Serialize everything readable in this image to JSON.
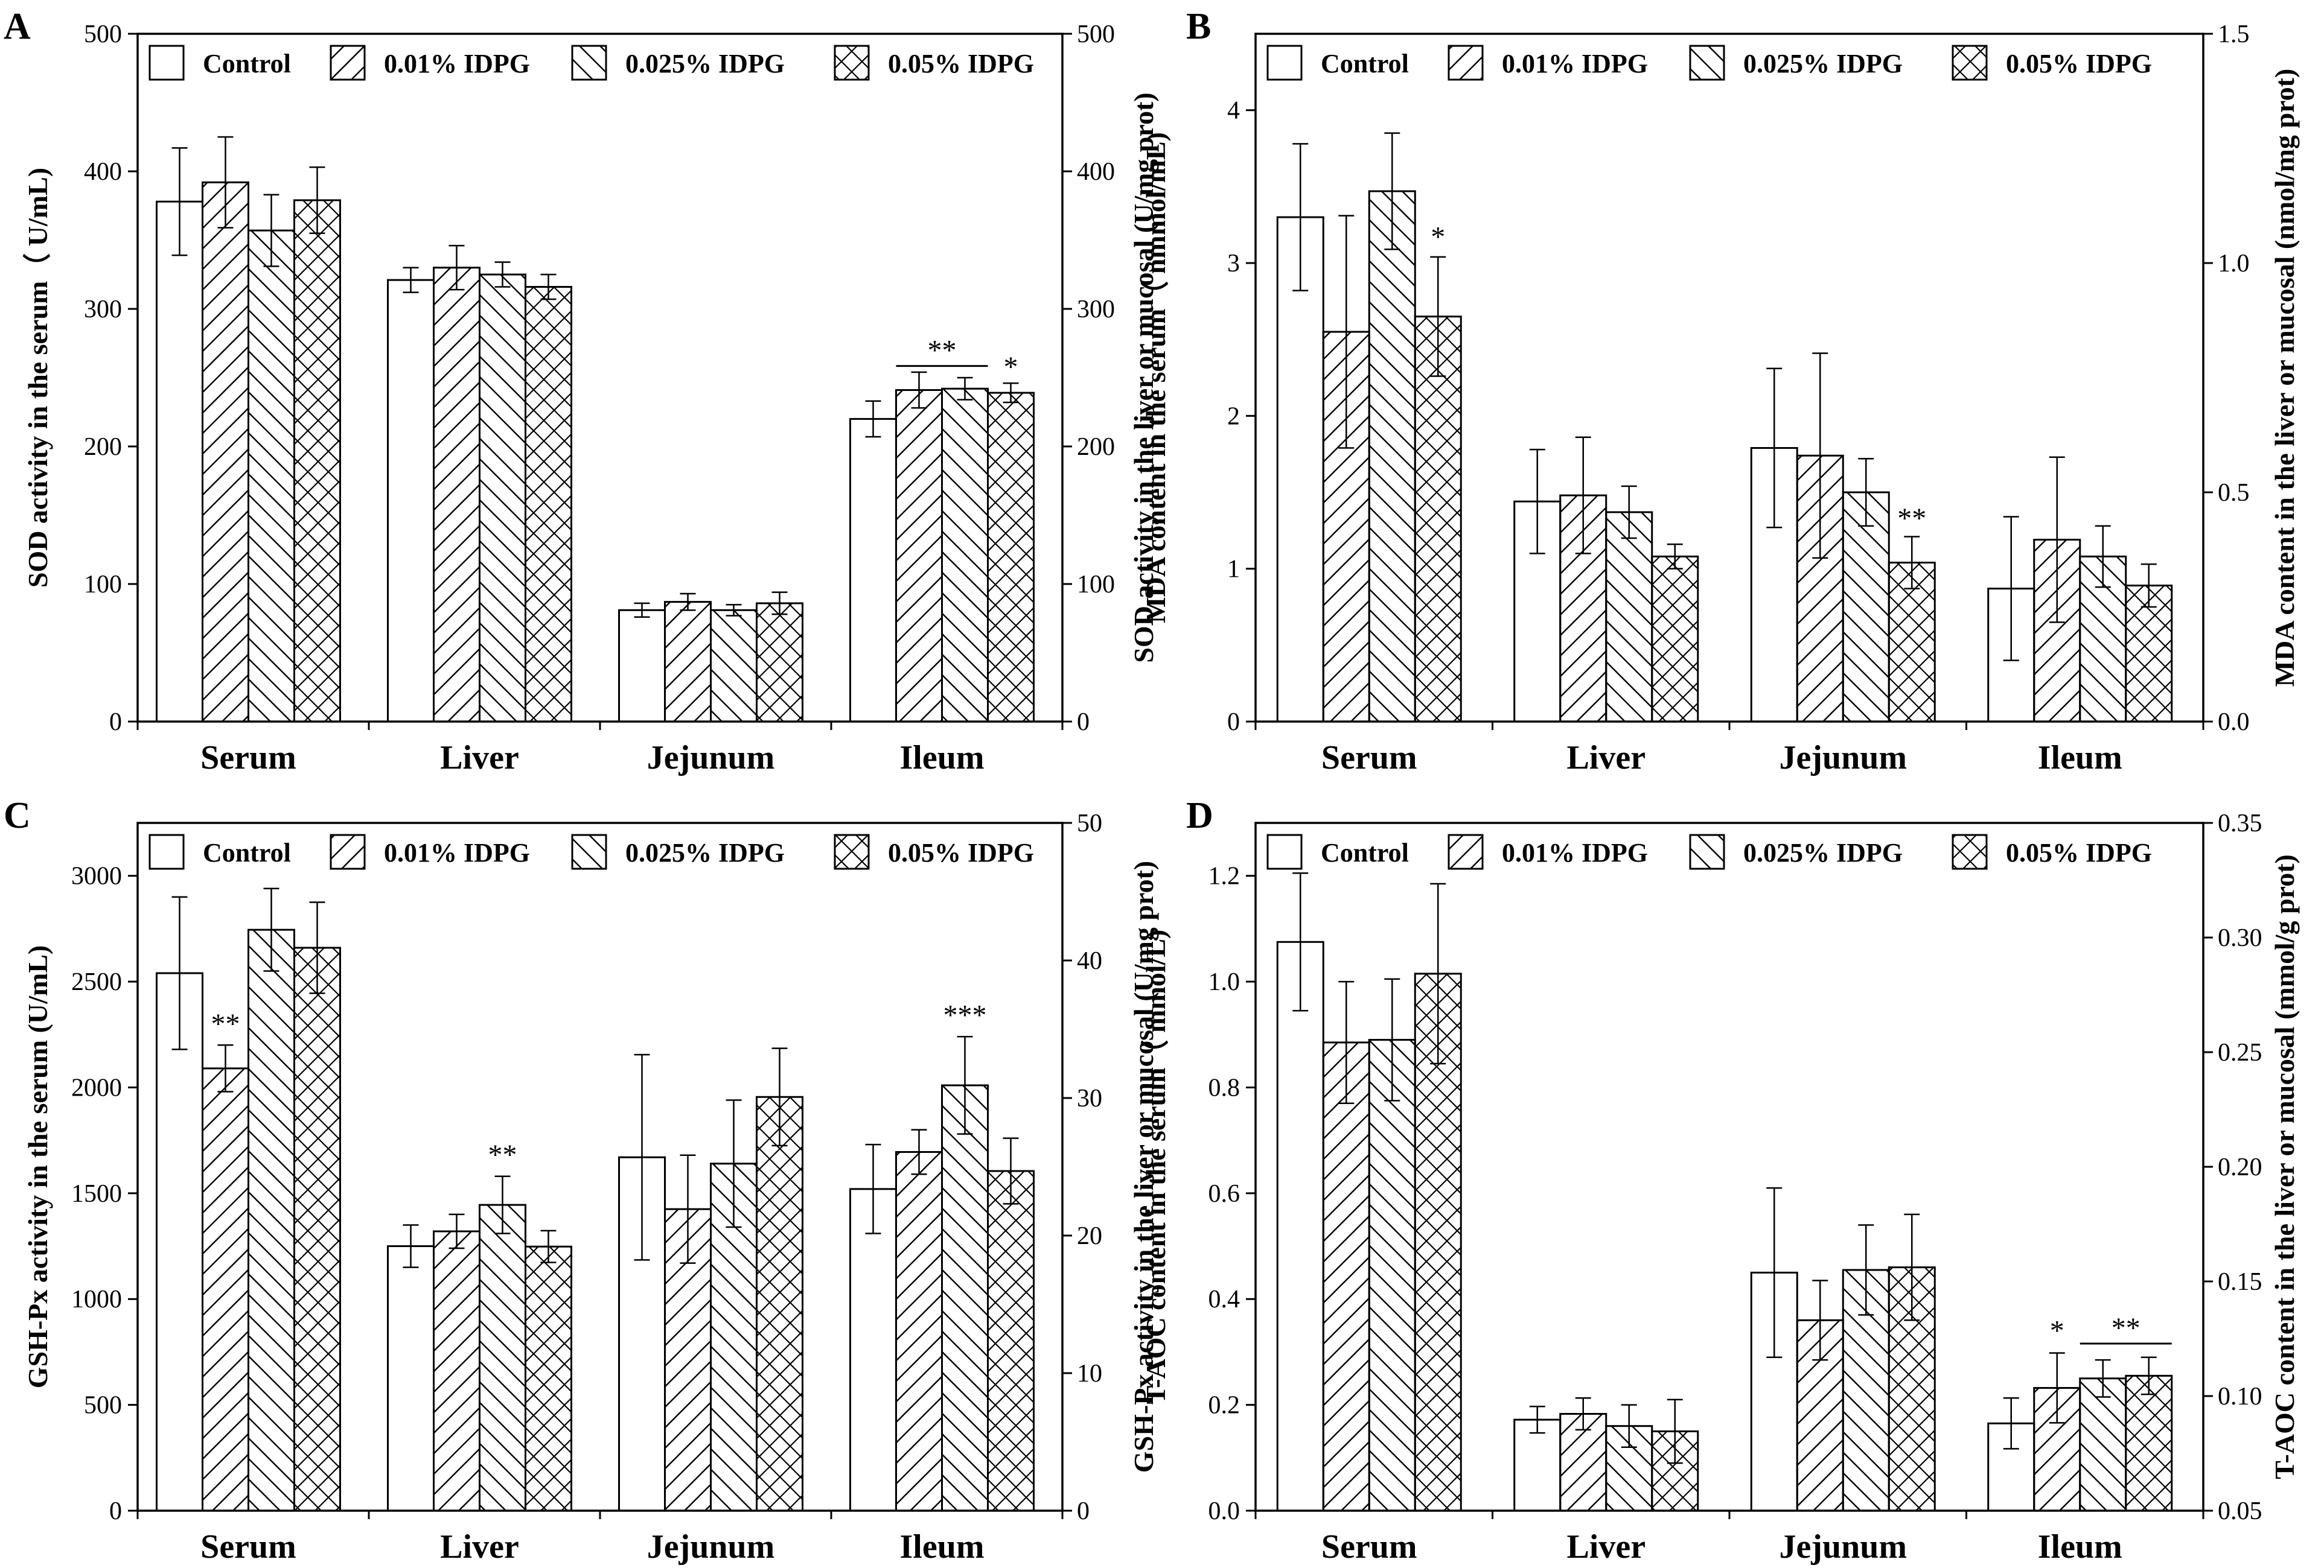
{
  "colors": {
    "ink": "#000000",
    "background": "#ffffff"
  },
  "legend": {
    "items": [
      {
        "label": "Control",
        "pattern": "none"
      },
      {
        "label": "0.01% IDPG",
        "pattern": "fwd"
      },
      {
        "label": "0.025% IDPG",
        "pattern": "back"
      },
      {
        "label": "0.05% IDPG",
        "pattern": "cross"
      }
    ]
  },
  "chart_data": [
    {
      "panel": "A",
      "type": "bar",
      "categories": [
        "Serum",
        "Liver",
        "Jejunum",
        "Ileum"
      ],
      "series_names": [
        "Control",
        "0.01% IDPG",
        "0.025% IDPG",
        "0.05% IDPG"
      ],
      "values": [
        [
          378,
          392,
          357,
          379
        ],
        [
          321,
          330,
          325,
          316
        ],
        [
          81,
          87,
          81,
          86
        ],
        [
          220,
          241,
          242,
          239
        ]
      ],
      "errors": [
        [
          39,
          33,
          26,
          24
        ],
        [
          9,
          16,
          9,
          9
        ],
        [
          5,
          6,
          4,
          8
        ],
        [
          13,
          13,
          8,
          7
        ]
      ],
      "ylabel_left": "SOD activity in the serum（ U/mL)",
      "ylabel_right": "SOD activity in the liver or mucosal (U/mg prot)",
      "ylim_left": [
        0,
        500
      ],
      "ylim_right": [
        0,
        500
      ],
      "yticks_left": [
        "0",
        "100",
        "200",
        "300",
        "400",
        "500"
      ],
      "yticks_right": [
        "0",
        "100",
        "200",
        "300",
        "400",
        "500"
      ],
      "annotations": [
        {
          "text": "**",
          "category": 3,
          "bar": 1,
          "value": 262,
          "bracket_to": 2
        },
        {
          "text": "*",
          "category": 3,
          "bar": 3,
          "value": 250
        }
      ]
    },
    {
      "panel": "B",
      "type": "bar",
      "categories": [
        "Serum",
        "Liver",
        "Jejunum",
        "Ileum"
      ],
      "series_names": [
        "Control",
        "0.01% IDPG",
        "0.025% IDPG",
        "0.05% IDPG"
      ],
      "values": [
        [
          3.3,
          2.55,
          3.47,
          2.65
        ],
        [
          1.44,
          1.48,
          1.37,
          1.08
        ],
        [
          1.79,
          1.74,
          1.5,
          1.04
        ],
        [
          0.87,
          1.19,
          1.08,
          0.89
        ]
      ],
      "errors": [
        [
          0.48,
          0.76,
          0.38,
          0.39
        ],
        [
          0.34,
          0.38,
          0.17,
          0.08
        ],
        [
          0.52,
          0.67,
          0.22,
          0.17
        ],
        [
          0.47,
          0.54,
          0.2,
          0.14
        ]
      ],
      "ylabel_left": "MDA content in the serum（ nmmol/mL)",
      "ylabel_right": "MDA content in the liver or mucosal (nmol/mg prot)",
      "ylim_left": [
        0,
        4.5
      ],
      "ylim_right": [
        0,
        1.5
      ],
      "yticks_left": [
        "0",
        "1",
        "2",
        "3",
        "4"
      ],
      "yticks_right": [
        "0.0",
        "0.5",
        "1.0",
        "1.5"
      ],
      "annotations": [
        {
          "text": "*",
          "category": 0,
          "bar": 3,
          "value": 3.1
        },
        {
          "text": "**",
          "category": 2,
          "bar": 3,
          "value": 1.26
        }
      ]
    },
    {
      "panel": "C",
      "type": "bar",
      "categories": [
        "Serum",
        "Liver",
        "Jejunum",
        "Ileum"
      ],
      "series_names": [
        "Control",
        "0.01% IDPG",
        "0.025% IDPG",
        "0.05% IDPG"
      ],
      "values": [
        [
          2540,
          2090,
          2745,
          2660
        ],
        [
          1250,
          1320,
          1445,
          1248
        ],
        [
          1670,
          1425,
          1640,
          1955
        ],
        [
          1520,
          1695,
          2010,
          1605
        ]
      ],
      "errors": [
        [
          360,
          110,
          195,
          215
        ],
        [
          100,
          80,
          135,
          75
        ],
        [
          485,
          255,
          300,
          230
        ],
        [
          210,
          105,
          230,
          155
        ]
      ],
      "ylabel_left": "GSH-Px activity in the serum (U/mL)",
      "ylabel_right": "GSH-Px activity in the liver or mucosal (U/mg prot)",
      "ylim_left": [
        0,
        3250
      ],
      "ylim_right": [
        0,
        50
      ],
      "yticks_left": [
        "0",
        "500",
        "1000",
        "1500",
        "2000",
        "2500",
        "3000"
      ],
      "yticks_right": [
        "0",
        "10",
        "20",
        "30",
        "40",
        "50"
      ],
      "annotations": [
        {
          "text": "**",
          "category": 0,
          "bar": 1,
          "value": 2250
        },
        {
          "text": "**",
          "category": 1,
          "bar": 2,
          "value": 1630
        },
        {
          "text": "***",
          "category": 3,
          "bar": 2,
          "value": 2290
        }
      ]
    },
    {
      "panel": "D",
      "type": "bar",
      "categories": [
        "Serum",
        "Liver",
        "Jejunum",
        "Ileum"
      ],
      "series_names": [
        "Control",
        "0.01% IDPG",
        "0.025% IDPG",
        "0.05% IDPG"
      ],
      "values": [
        [
          1.075,
          0.885,
          0.89,
          1.015
        ],
        [
          0.172,
          0.183,
          0.16,
          0.15
        ],
        [
          0.45,
          0.36,
          0.455,
          0.46
        ],
        [
          0.165,
          0.232,
          0.25,
          0.255
        ]
      ],
      "errors": [
        [
          0.13,
          0.115,
          0.115,
          0.17
        ],
        [
          0.025,
          0.03,
          0.04,
          0.06
        ],
        [
          0.16,
          0.075,
          0.085,
          0.1
        ],
        [
          0.048,
          0.066,
          0.035,
          0.035
        ]
      ],
      "ylabel_left": "T-AOC content in the serum（ mmol/L)",
      "ylabel_right": "T-AOC content in the liver or mucosal (mmol/g prot)",
      "ylim_left": [
        0,
        1.3
      ],
      "ylim_right": [
        0.05,
        0.35
      ],
      "yticks_left": [
        "0.0",
        "0.2",
        "0.4",
        "0.6",
        "0.8",
        "1.0",
        "1.2"
      ],
      "yticks_right": [
        "0.05",
        "0.10",
        "0.15",
        "0.20",
        "0.25",
        "0.30",
        "0.35"
      ],
      "annotations": [
        {
          "text": "*",
          "category": 3,
          "bar": 1,
          "value": 0.32
        },
        {
          "text": "**",
          "category": 3,
          "bar": 2,
          "value": 0.325,
          "bracket_to": 3
        }
      ]
    }
  ]
}
